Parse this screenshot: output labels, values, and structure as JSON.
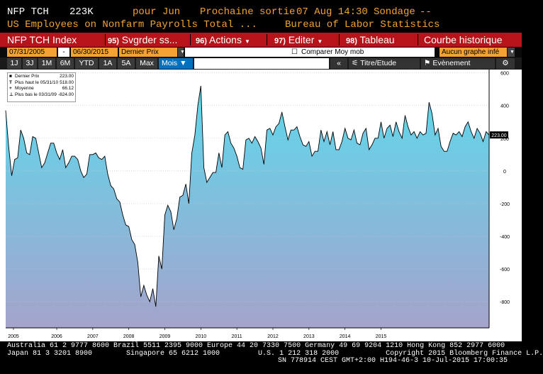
{
  "header": {
    "ticker": "NFP TCH",
    "value": "223K",
    "pour_label": "pour Jun",
    "next_label": "Prochaine sortie",
    "next_date": "07 Aug 14:30",
    "sondage_label": "Sondage",
    "sondage_value": "--",
    "description": "US Employees on Nonfarm Payrolls Total ...",
    "source": "Bureau of Labor Statistics"
  },
  "menubar": {
    "index": "NFP TCH Index",
    "save": {
      "num": "95)",
      "label": "Svgrder ss..."
    },
    "actions": {
      "num": "96)",
      "label": "Actions"
    },
    "edit": {
      "num": "97)",
      "label": "Editer"
    },
    "table": {
      "num": "98)",
      "label": "Tableau"
    },
    "history": "Courbe historique"
  },
  "datebar": {
    "start": "07/31/2005",
    "dash": "-",
    "end": "06/30/2015",
    "field": "Dernier Prix",
    "compare": "Comparer Moy mob",
    "graph": "Aucun graphe infé"
  },
  "tabs": [
    "1J",
    "3J",
    "1M",
    "6M",
    "YTD",
    "1A",
    "5A",
    "Max"
  ],
  "period": "Mois",
  "tools": {
    "collapse": "«",
    "title": "Titre/Etude",
    "events": "Evènement"
  },
  "legend": [
    {
      "glyph": "■",
      "label": "Dernier Prix",
      "value": "223.00"
    },
    {
      "glyph": "T",
      "label": "Plus haut le 05/31/10",
      "value": "518.00"
    },
    {
      "glyph": "+",
      "label": "Moyenne",
      "value": "66.12"
    },
    {
      "glyph": "⊥",
      "label": "Plus bas le 03/31/09",
      "value": "-824.00"
    }
  ],
  "colors": {
    "menubar": "#b8131b",
    "orange_text": "#f4a233",
    "selected_tab": "#0070c0",
    "area_top": "#5ed8ec",
    "area_bottom": "#a5a3cc"
  },
  "chart_data": {
    "type": "area",
    "ylim": [
      -960,
      620
    ],
    "yticks": [
      600,
      400,
      200,
      0,
      -200,
      -400,
      -600,
      -800
    ],
    "xticks": [
      "2005",
      "2006",
      "2007",
      "2008",
      "2009",
      "2010",
      "2011",
      "2012",
      "2013",
      "2014",
      "2015"
    ],
    "last_value_label": "223.00",
    "series": [
      {
        "values": [
          370,
          150,
          -30,
          70,
          80,
          250,
          200,
          110,
          100,
          210,
          200,
          110,
          20,
          50,
          110,
          170,
          170,
          110,
          70,
          130,
          20,
          50,
          90,
          90,
          70,
          0,
          -40,
          -20,
          100,
          100,
          110,
          80,
          70,
          90,
          -20,
          -90,
          -110,
          -170,
          -190,
          -270,
          -330,
          -340,
          -420,
          -450,
          -560,
          -770,
          -700,
          -760,
          -800,
          -720,
          -830,
          -520,
          -600,
          -270,
          -210,
          -250,
          -360,
          -290,
          -160,
          -150,
          -80,
          -200,
          110,
          220,
          400,
          520,
          20,
          -70,
          -40,
          -10,
          -10,
          110,
          20,
          220,
          240,
          170,
          140,
          90,
          20,
          10,
          190,
          200,
          170,
          210,
          180,
          140,
          40,
          250,
          260,
          220,
          270,
          290,
          360,
          270,
          190,
          250,
          250,
          270,
          210,
          160,
          150,
          180,
          90,
          120,
          120,
          250,
          180,
          240,
          160,
          240,
          130,
          130,
          180,
          260,
          200,
          190,
          250,
          170,
          160,
          230,
          260,
          130,
          160,
          200,
          200,
          300,
          200,
          260,
          280,
          210,
          300,
          240,
          200,
          340,
          270,
          220,
          240,
          200,
          240,
          220,
          230,
          420,
          350,
          220,
          260,
          150,
          120,
          120,
          180,
          230,
          220,
          240,
          210,
          270,
          300,
          240,
          200,
          260,
          230,
          180,
          240,
          220
        ]
      }
    ]
  },
  "footer": {
    "line1": "Australia 61 2 9777 8600 Brazil 5511 2395 9000 Europe 44 20 7330 7500 Germany 49 69 9204 1210 Hong Kong 852 2977 6000",
    "line2": "Japan 81 3 3201 8900        Singapore 65 6212 1000         U.S. 1 212 318 2000           Copyright 2015 Bloomberg Finance L.P.",
    "line3": "SN 778914 CEST GMT+2:00 H194-46-3 10-Jul-2015 17:00:35"
  }
}
